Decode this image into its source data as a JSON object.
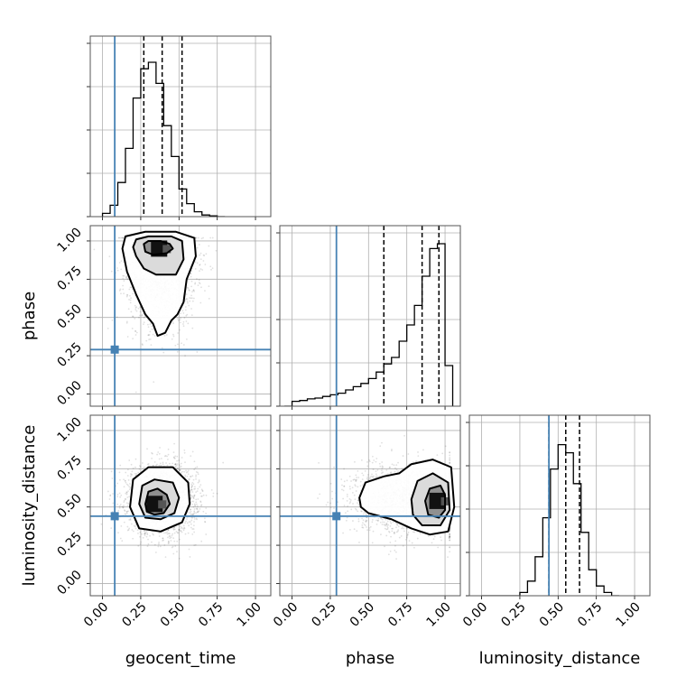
{
  "chart_data": {
    "type": "corner",
    "parameters": [
      "geocent_time",
      "phase",
      "luminosity_distance"
    ],
    "axis_range": [
      -0.08,
      1.1
    ],
    "y_ticks": [
      "0.00",
      "0.25",
      "0.50",
      "0.75",
      "1.00"
    ],
    "x_ticks": [
      "0.00",
      "0.25",
      "0.50",
      "0.75",
      "1.00"
    ],
    "tick_values": [
      0,
      0.25,
      0.5,
      0.75,
      1.0
    ],
    "truths": {
      "geocent_time": 0.08,
      "phase": 0.29,
      "luminosity_distance": 0.44
    },
    "truth_color": "#4682b4",
    "grid": true,
    "histograms": {
      "geocent_time": {
        "bin_edges": [
          0.0,
          0.05,
          0.1,
          0.15,
          0.2,
          0.25,
          0.3,
          0.35,
          0.4,
          0.45,
          0.5,
          0.55,
          0.6,
          0.65,
          0.7,
          0.75,
          0.8
        ],
        "counts": [
          0.02,
          0.07,
          0.21,
          0.42,
          0.73,
          0.91,
          0.95,
          0.82,
          0.56,
          0.37,
          0.17,
          0.08,
          0.03,
          0.01,
          0.005,
          0.0
        ],
        "quantiles": [
          0.27,
          0.39,
          0.52
        ]
      },
      "phase": {
        "bin_edges": [
          -0.05,
          0.0,
          0.05,
          0.1,
          0.15,
          0.2,
          0.25,
          0.3,
          0.35,
          0.4,
          0.45,
          0.5,
          0.55,
          0.6,
          0.65,
          0.7,
          0.75,
          0.8,
          0.85,
          0.9,
          0.95,
          1.0,
          1.05
        ],
        "counts": [
          0.0,
          0.03,
          0.035,
          0.045,
          0.05,
          0.06,
          0.07,
          0.08,
          0.1,
          0.12,
          0.14,
          0.17,
          0.21,
          0.26,
          0.3,
          0.4,
          0.5,
          0.62,
          0.8,
          0.97,
          1.0,
          0.25
        ],
        "quantiles": [
          0.6,
          0.85,
          0.96
        ]
      },
      "luminosity_distance": {
        "bin_edges": [
          0.0,
          0.05,
          0.1,
          0.15,
          0.2,
          0.25,
          0.3,
          0.35,
          0.4,
          0.45,
          0.5,
          0.55,
          0.6,
          0.65,
          0.7,
          0.75,
          0.8,
          0.85,
          0.9
        ],
        "counts": [
          0.0,
          0.0,
          0.0,
          0.0,
          0.0,
          0.02,
          0.09,
          0.24,
          0.48,
          0.78,
          0.93,
          0.88,
          0.69,
          0.39,
          0.16,
          0.06,
          0.02,
          0.0
        ],
        "quantiles": [
          0.44,
          0.55,
          0.64
        ]
      }
    },
    "joint": [
      {
        "x": "geocent_time",
        "y": "phase",
        "peak": [
          0.37,
          0.95
        ],
        "contours": [
          [
            [
              0.27,
              0.98
            ],
            [
              0.3,
              1.0
            ],
            [
              0.38,
              1.0
            ],
            [
              0.44,
              0.98
            ],
            [
              0.46,
              0.95
            ],
            [
              0.42,
              0.92
            ],
            [
              0.33,
              0.91
            ],
            [
              0.28,
              0.93
            ]
          ],
          [
            [
              0.2,
              0.96
            ],
            [
              0.22,
              1.01
            ],
            [
              0.3,
              1.03
            ],
            [
              0.45,
              1.03
            ],
            [
              0.52,
              1.0
            ],
            [
              0.53,
              0.88
            ],
            [
              0.48,
              0.78
            ],
            [
              0.35,
              0.78
            ],
            [
              0.27,
              0.82
            ],
            [
              0.22,
              0.9
            ]
          ],
          [
            [
              0.13,
              0.95
            ],
            [
              0.15,
              1.03
            ],
            [
              0.28,
              1.06
            ],
            [
              0.48,
              1.06
            ],
            [
              0.6,
              1.02
            ],
            [
              0.61,
              0.9
            ],
            [
              0.55,
              0.75
            ],
            [
              0.53,
              0.6
            ],
            [
              0.49,
              0.52
            ],
            [
              0.45,
              0.48
            ],
            [
              0.41,
              0.4
            ],
            [
              0.36,
              0.38
            ],
            [
              0.33,
              0.46
            ],
            [
              0.28,
              0.52
            ],
            [
              0.22,
              0.65
            ],
            [
              0.16,
              0.8
            ]
          ]
        ],
        "samples": {
          "mx": 0.39,
          "sx": 0.11,
          "my": 0.85,
          "sy": 0.2,
          "n": 2200
        }
      },
      {
        "x": "geocent_time",
        "y": "luminosity_distance",
        "peak": [
          0.34,
          0.52
        ],
        "contours": [
          [
            [
              0.28,
              0.52
            ],
            [
              0.3,
              0.6
            ],
            [
              0.36,
              0.62
            ],
            [
              0.42,
              0.58
            ],
            [
              0.44,
              0.52
            ],
            [
              0.4,
              0.46
            ],
            [
              0.34,
              0.45
            ],
            [
              0.29,
              0.47
            ]
          ],
          [
            [
              0.24,
              0.52
            ],
            [
              0.26,
              0.64
            ],
            [
              0.34,
              0.68
            ],
            [
              0.46,
              0.66
            ],
            [
              0.5,
              0.56
            ],
            [
              0.47,
              0.46
            ],
            [
              0.38,
              0.42
            ],
            [
              0.28,
              0.43
            ]
          ],
          [
            [
              0.18,
              0.5
            ],
            [
              0.2,
              0.68
            ],
            [
              0.3,
              0.76
            ],
            [
              0.46,
              0.76
            ],
            [
              0.56,
              0.66
            ],
            [
              0.57,
              0.52
            ],
            [
              0.52,
              0.4
            ],
            [
              0.38,
              0.34
            ],
            [
              0.24,
              0.36
            ]
          ]
        ],
        "samples": {
          "mx": 0.39,
          "sx": 0.11,
          "my": 0.55,
          "sy": 0.11,
          "n": 2600
        }
      },
      {
        "x": "phase",
        "y": "luminosity_distance",
        "peak": [
          0.95,
          0.54
        ],
        "contours": [
          [
            [
              0.87,
              0.54
            ],
            [
              0.9,
              0.62
            ],
            [
              0.97,
              0.64
            ],
            [
              1.0,
              0.58
            ],
            [
              1.0,
              0.48
            ],
            [
              0.96,
              0.43
            ],
            [
              0.89,
              0.45
            ]
          ],
          [
            [
              0.78,
              0.55
            ],
            [
              0.82,
              0.67
            ],
            [
              0.92,
              0.72
            ],
            [
              1.02,
              0.66
            ],
            [
              1.03,
              0.48
            ],
            [
              0.97,
              0.38
            ],
            [
              0.85,
              0.38
            ],
            [
              0.79,
              0.45
            ]
          ],
          [
            [
              0.44,
              0.56
            ],
            [
              0.48,
              0.66
            ],
            [
              0.6,
              0.7
            ],
            [
              0.7,
              0.72
            ],
            [
              0.78,
              0.78
            ],
            [
              0.92,
              0.81
            ],
            [
              1.04,
              0.76
            ],
            [
              1.06,
              0.5
            ],
            [
              1.02,
              0.34
            ],
            [
              0.9,
              0.32
            ],
            [
              0.78,
              0.36
            ],
            [
              0.65,
              0.42
            ],
            [
              0.5,
              0.46
            ],
            [
              0.45,
              0.5
            ]
          ]
        ],
        "samples": {
          "mx": 0.82,
          "sx": 0.2,
          "my": 0.55,
          "sy": 0.11,
          "n": 2600
        }
      }
    ]
  }
}
